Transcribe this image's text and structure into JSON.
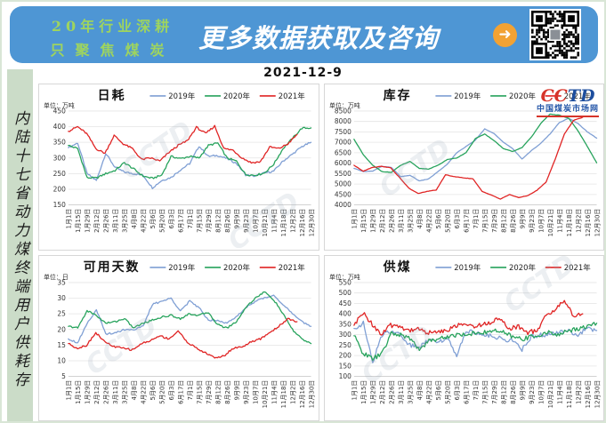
{
  "page": {
    "date": "2021-12-9",
    "watermark": "CCTD"
  },
  "banner": {
    "line1": "20年行业深耕",
    "line2": "只聚焦煤炭",
    "slogan": "更多数据获取及咨询",
    "arrow_glyph": "➜",
    "bg_color": "#4e96d4",
    "tagline_color": "#9ed45f",
    "slogan_color": "#ffffff",
    "arrow_color": "#f2a233"
  },
  "sidebar": {
    "vertical_text": "内陆十七省动力煤终端用户供耗存",
    "bg_color": "#cbdcc8"
  },
  "brand": {
    "name_left": "CC",
    "name_right": "TD",
    "site": "中国煤炭市场网",
    "name_left_color": "#d6342a",
    "name_right_color": "#1d4e9e",
    "site_color": "#2456a8",
    "rule_color": "#d6342a"
  },
  "colors": {
    "s2019": "#7f9fd4",
    "s2020": "#27a35c",
    "s2021": "#e02424",
    "grid": "#e4e4e4",
    "axis_line": "#c4c4c4",
    "axis_text": "#333333",
    "title_text": "#111111"
  },
  "chart_data": [
    {
      "type": "line",
      "title": "日耗",
      "unit_label": "单位：万吨",
      "ylim": [
        150,
        450
      ],
      "ytick_step": 50,
      "grid": true,
      "legend_position": "top",
      "categories": [
        "1月1日",
        "1月15日",
        "1月29日",
        "2月12日",
        "2月26日",
        "3月11日",
        "3月25日",
        "4月8日",
        "4月22日",
        "5月6日",
        "5月20日",
        "6月3日",
        "6月17日",
        "7月1日",
        "7月15日",
        "7月29日",
        "8月12日",
        "8月26日",
        "9月9日",
        "9月23日",
        "10月7日",
        "10月21日",
        "11月4日",
        "11月18日",
        "12月2日",
        "12月16日",
        "12月30日"
      ],
      "series": [
        {
          "name": "2019年",
          "color_key": "s2019",
          "values": [
            333,
            348,
            250,
            228,
            315,
            270,
            255,
            250,
            245,
            205,
            228,
            238,
            262,
            282,
            338,
            305,
            308,
            298,
            283,
            246,
            242,
            252,
            258,
            290,
            312,
            336,
            350
          ]
        },
        {
          "name": "2020年",
          "color_key": "s2020",
          "values": [
            340,
            330,
            237,
            236,
            250,
            260,
            285,
            265,
            242,
            235,
            245,
            305,
            298,
            305,
            300,
            340,
            348,
            300,
            290,
            247,
            245,
            252,
            280,
            330,
            362,
            395,
            396
          ]
        },
        {
          "name": "2021年",
          "color_key": "s2021",
          "x_end_index": 24.5,
          "values": [
            385,
            400,
            378,
            330,
            315,
            372,
            345,
            330,
            295,
            300,
            290,
            318,
            340,
            355,
            398,
            378,
            402,
            330,
            325,
            300,
            285,
            288,
            335,
            330,
            345,
            375
          ]
        }
      ]
    },
    {
      "type": "line",
      "title": "库存",
      "unit_label": "单位：万吨",
      "ylim": [
        4000,
        8500
      ],
      "ytick_step": 500,
      "grid": true,
      "legend_position": "top",
      "categories": [
        "1月1日",
        "1月15日",
        "1月29日",
        "2月12日",
        "2月26日",
        "3月11日",
        "3月25日",
        "4月8日",
        "4月22日",
        "5月6日",
        "5月20日",
        "6月3日",
        "6月17日",
        "7月1日",
        "7月15日",
        "7月29日",
        "8月12日",
        "8月26日",
        "9月9日",
        "9月23日",
        "10月7日",
        "10月21日",
        "11月4日",
        "11月18日",
        "12月2日",
        "12月16日",
        "12月30日"
      ],
      "series": [
        {
          "name": "2019年",
          "color_key": "s2019",
          "values": [
            5750,
            5600,
            5620,
            5850,
            5800,
            5350,
            5420,
            5150,
            5250,
            5600,
            5950,
            6500,
            6800,
            7100,
            7650,
            7420,
            7000,
            6700,
            6200,
            6600,
            6950,
            7400,
            7950,
            8150,
            7900,
            7500,
            7200
          ]
        },
        {
          "name": "2020年",
          "color_key": "s2020",
          "values": [
            7150,
            6400,
            5900,
            5600,
            5560,
            5900,
            6080,
            5750,
            5720,
            5900,
            6180,
            6250,
            6500,
            7180,
            7400,
            7080,
            6700,
            6560,
            6750,
            7250,
            7900,
            8350,
            8300,
            8150,
            7550,
            6800,
            6020
          ]
        },
        {
          "name": "2021年",
          "color_key": "s2021",
          "x_end_index": 24.5,
          "values": [
            5900,
            5620,
            5800,
            5850,
            5780,
            5300,
            4800,
            4550,
            4650,
            4720,
            5450,
            5350,
            5300,
            5250,
            4650,
            4480,
            4280,
            4500,
            4350,
            4450,
            4700,
            5100,
            6200,
            7400,
            8050,
            8200
          ]
        }
      ]
    },
    {
      "type": "line",
      "title": "可用天数",
      "unit_label": "单位：日",
      "ylim": [
        5,
        35
      ],
      "ytick_step": 5,
      "grid": true,
      "legend_position": "top",
      "categories": [
        "1月1日",
        "1月15日",
        "1月29日",
        "2月12日",
        "2月26日",
        "3月11日",
        "3月25日",
        "4月8日",
        "4月22日",
        "5月6日",
        "5月20日",
        "6月3日",
        "6月17日",
        "7月1日",
        "7月15日",
        "7月29日",
        "8月12日",
        "8月26日",
        "9月9日",
        "9月23日",
        "10月7日",
        "10月21日",
        "11月4日",
        "11月18日",
        "12月2日",
        "12月16日",
        "12月30日"
      ],
      "series": [
        {
          "name": "2019年",
          "color_key": "s2019",
          "values": [
            17,
            15.8,
            22,
            26.3,
            18.5,
            19,
            20,
            20,
            21,
            28,
            29,
            30,
            26,
            29,
            27,
            23,
            23,
            22,
            24,
            27,
            29,
            30,
            31,
            28,
            25,
            22.5,
            21
          ]
        },
        {
          "name": "2020年",
          "color_key": "s2020",
          "values": [
            21,
            20.5,
            26,
            24.5,
            22,
            22.5,
            23.5,
            20.5,
            22,
            23,
            24,
            24.5,
            23.5,
            25,
            24.5,
            25.5,
            21.5,
            20.5,
            22.5,
            27,
            30,
            32,
            29.5,
            25,
            20,
            17,
            15.5
          ]
        },
        {
          "name": "2021年",
          "color_key": "s2021",
          "x_end_index": 24.5,
          "values": [
            15.5,
            14,
            15,
            19,
            16,
            14.5,
            14,
            13.5,
            15.5,
            16.5,
            18,
            17,
            19.5,
            16,
            14,
            12.5,
            11,
            11.5,
            14,
            14.5,
            16,
            17,
            19,
            21,
            23.5,
            22.5
          ]
        }
      ]
    },
    {
      "type": "line",
      "title": "供煤",
      "unit_label": "单位：万吨",
      "ylim": [
        100,
        550
      ],
      "ytick_step": 50,
      "grid": true,
      "legend_position": "top",
      "categories": [
        "1月1日",
        "1月15日",
        "1月29日",
        "2月12日",
        "2月26日",
        "3月11日",
        "3月25日",
        "4月8日",
        "4月22日",
        "5月6日",
        "5月20日",
        "6月3日",
        "6月17日",
        "7月1日",
        "7月15日",
        "7月29日",
        "8月12日",
        "8月26日",
        "9月9日",
        "9月23日",
        "10月7日",
        "10月21日",
        "11月4日",
        "11月18日",
        "12月2日",
        "12月16日",
        "12月30日"
      ],
      "series": [
        {
          "name": "2019年",
          "color_key": "s2019",
          "values": [
            330,
            355,
            165,
            300,
            320,
            300,
            250,
            240,
            280,
            270,
            280,
            205,
            320,
            310,
            300,
            290,
            280,
            270,
            230,
            290,
            300,
            300,
            310,
            320,
            300,
            330,
            320
          ]
        },
        {
          "name": "2020年",
          "color_key": "s2020",
          "values": [
            295,
            210,
            185,
            210,
            305,
            300,
            280,
            230,
            270,
            280,
            290,
            300,
            300,
            310,
            310,
            320,
            310,
            290,
            280,
            290,
            300,
            310,
            300,
            320,
            330,
            340,
            355
          ]
        },
        {
          "name": "2021年",
          "color_key": "s2021",
          "x_end_index": 24.5,
          "values": [
            345,
            405,
            350,
            300,
            345,
            340,
            320,
            330,
            310,
            310,
            320,
            340,
            350,
            340,
            350,
            360,
            380,
            330,
            340,
            310,
            320,
            390,
            420,
            465,
            390,
            400
          ]
        }
      ]
    }
  ]
}
